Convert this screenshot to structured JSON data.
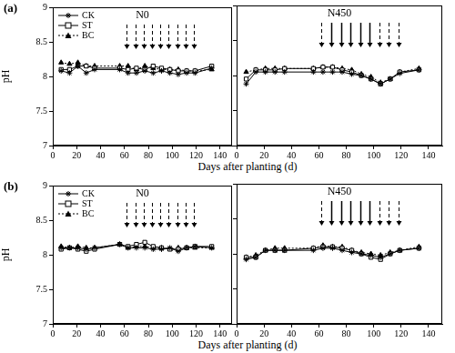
{
  "chart_data": [
    {
      "type": "line",
      "panel_label": "(a)",
      "title": "N0",
      "y_label": "pH",
      "x_label": "Days after planting (d)",
      "xlim": [
        0,
        150
      ],
      "xticks": [
        0,
        20,
        40,
        60,
        80,
        100,
        120,
        140
      ],
      "ylim": [
        7,
        9
      ],
      "yticks": [
        7,
        7.5,
        8,
        8.5,
        9
      ],
      "grid": false,
      "legend": "upper left",
      "x": [
        7,
        14,
        21,
        28,
        35,
        56,
        63,
        70,
        77,
        84,
        91,
        98,
        105,
        112,
        119,
        133
      ],
      "series": [
        {
          "name": "CK",
          "color": "#000000",
          "marker": "star",
          "line_style": "solid",
          "values": [
            8.08,
            8.05,
            8.15,
            8.05,
            8.1,
            8.1,
            8.05,
            8.05,
            8.08,
            8.05,
            8.08,
            8.05,
            8.03,
            8.05,
            8.05,
            8.12
          ]
        },
        {
          "name": "ST",
          "color": "#000000",
          "marker": "square",
          "line_style": "solid",
          "values": [
            8.1,
            8.1,
            8.15,
            8.15,
            8.12,
            8.12,
            8.1,
            8.12,
            8.1,
            8.15,
            8.12,
            8.1,
            8.08,
            8.08,
            8.08,
            8.15
          ]
        },
        {
          "name": "BC",
          "color": "#000000",
          "marker": "triangle",
          "line_style": "dotted",
          "values": [
            8.2,
            8.18,
            8.2,
            8.15,
            8.15,
            8.15,
            8.15,
            8.1,
            8.15,
            8.12,
            8.1,
            8.1,
            8.1,
            8.08,
            8.08,
            8.1
          ]
        }
      ],
      "arrows": [
        {
          "x": 62,
          "line_style": "dashed"
        },
        {
          "x": 69,
          "line_style": "dashed"
        },
        {
          "x": 76,
          "line_style": "dashed"
        },
        {
          "x": 83,
          "line_style": "dashed"
        },
        {
          "x": 90,
          "line_style": "dashed"
        },
        {
          "x": 97,
          "line_style": "dashed"
        },
        {
          "x": 104,
          "line_style": "dashed"
        },
        {
          "x": 111,
          "line_style": "dashed"
        },
        {
          "x": 118,
          "line_style": "dashed"
        }
      ]
    },
    {
      "type": "line",
      "title": "N450",
      "tick_labels": "x",
      "xlim": [
        0,
        150
      ],
      "xticks": [
        0,
        20,
        40,
        60,
        80,
        100,
        120,
        140
      ],
      "ylim": [
        7,
        9
      ],
      "yticks": [
        7,
        7.5,
        8,
        8.5,
        9
      ],
      "grid": false,
      "x": [
        7,
        14,
        21,
        28,
        35,
        56,
        63,
        70,
        77,
        84,
        91,
        98,
        105,
        112,
        119,
        133
      ],
      "series": [
        {
          "name": "CK",
          "color": "#000000",
          "marker": "star",
          "line_style": "solid",
          "values": [
            7.88,
            8.05,
            8.05,
            8.05,
            8.05,
            8.05,
            8.05,
            8.05,
            8.05,
            8.02,
            8.0,
            7.95,
            7.88,
            7.95,
            8.03,
            8.08
          ]
        },
        {
          "name": "ST",
          "color": "#000000",
          "marker": "square",
          "line_style": "solid",
          "values": [
            7.95,
            8.08,
            8.08,
            8.08,
            8.1,
            8.1,
            8.12,
            8.12,
            8.08,
            8.05,
            8.0,
            7.95,
            7.88,
            7.95,
            8.05,
            8.08
          ]
        },
        {
          "name": "BC",
          "color": "#000000",
          "marker": "triangle",
          "line_style": "dotted",
          "values": [
            8.05,
            8.08,
            8.1,
            8.1,
            8.1,
            8.1,
            8.12,
            8.12,
            8.1,
            8.08,
            8.02,
            7.98,
            7.9,
            7.95,
            8.05,
            8.1
          ]
        }
      ],
      "arrows": [
        {
          "x": 62,
          "line_style": "dashed"
        },
        {
          "x": 69,
          "line_style": "solid"
        },
        {
          "x": 76,
          "line_style": "solid"
        },
        {
          "x": 83,
          "line_style": "solid"
        },
        {
          "x": 90,
          "line_style": "solid"
        },
        {
          "x": 97,
          "line_style": "solid"
        },
        {
          "x": 104,
          "line_style": "dashed"
        },
        {
          "x": 111,
          "line_style": "dashed"
        },
        {
          "x": 118,
          "line_style": "dashed"
        }
      ]
    },
    {
      "type": "line",
      "panel_label": "(b)",
      "title": "N0",
      "y_label": "pH",
      "x_label": "Days after planting (d)",
      "xlim": [
        0,
        150
      ],
      "xticks": [
        0,
        20,
        40,
        60,
        80,
        100,
        120,
        140
      ],
      "ylim": [
        7,
        9
      ],
      "yticks": [
        7,
        7.5,
        8,
        8.5,
        9
      ],
      "grid": false,
      "legend": "upper left",
      "x": [
        7,
        14,
        21,
        28,
        35,
        56,
        63,
        70,
        77,
        84,
        91,
        98,
        105,
        112,
        119,
        133
      ],
      "series": [
        {
          "name": "CK",
          "color": "#000000",
          "marker": "star",
          "line_style": "solid",
          "values": [
            8.1,
            8.1,
            8.1,
            8.08,
            8.1,
            8.15,
            8.1,
            8.1,
            8.1,
            8.08,
            8.08,
            8.1,
            8.05,
            8.1,
            8.12,
            8.1
          ]
        },
        {
          "name": "ST",
          "color": "#000000",
          "marker": "square",
          "line_style": "solid",
          "values": [
            8.08,
            8.1,
            8.08,
            8.05,
            8.08,
            8.15,
            8.12,
            8.15,
            8.18,
            8.12,
            8.1,
            8.08,
            8.08,
            8.1,
            8.12,
            8.12
          ]
        },
        {
          "name": "BC",
          "color": "#000000",
          "marker": "triangle",
          "line_style": "dotted",
          "values": [
            8.12,
            8.1,
            8.12,
            8.1,
            8.1,
            8.15,
            8.1,
            8.12,
            8.12,
            8.1,
            8.1,
            8.08,
            8.1,
            8.1,
            8.1,
            8.1
          ]
        }
      ],
      "arrows": [
        {
          "x": 62,
          "line_style": "dashed"
        },
        {
          "x": 69,
          "line_style": "dashed"
        },
        {
          "x": 76,
          "line_style": "dashed"
        },
        {
          "x": 83,
          "line_style": "dashed"
        },
        {
          "x": 90,
          "line_style": "dashed"
        },
        {
          "x": 97,
          "line_style": "dashed"
        },
        {
          "x": 104,
          "line_style": "dashed"
        },
        {
          "x": 111,
          "line_style": "dashed"
        },
        {
          "x": 118,
          "line_style": "dashed"
        }
      ]
    },
    {
      "type": "line",
      "title": "N450",
      "tick_labels": "x",
      "xlim": [
        0,
        150
      ],
      "xticks": [
        0,
        20,
        40,
        60,
        80,
        100,
        120,
        140
      ],
      "ylim": [
        7,
        9
      ],
      "yticks": [
        7,
        7.5,
        8,
        8.5,
        9
      ],
      "grid": false,
      "x": [
        7,
        14,
        21,
        28,
        35,
        56,
        63,
        70,
        77,
        84,
        91,
        98,
        105,
        112,
        119,
        133
      ],
      "series": [
        {
          "name": "CK",
          "color": "#000000",
          "marker": "star",
          "line_style": "solid",
          "values": [
            7.92,
            7.95,
            8.05,
            8.05,
            8.05,
            8.05,
            8.08,
            8.08,
            8.05,
            8.02,
            8.0,
            7.98,
            7.95,
            8.0,
            8.05,
            8.08
          ]
        },
        {
          "name": "ST",
          "color": "#000000",
          "marker": "square",
          "line_style": "solid",
          "values": [
            7.95,
            7.95,
            8.05,
            8.05,
            8.05,
            8.08,
            8.1,
            8.1,
            8.08,
            8.05,
            8.0,
            7.95,
            7.92,
            8.0,
            8.05,
            8.08
          ]
        },
        {
          "name": "BC",
          "color": "#000000",
          "marker": "triangle",
          "line_style": "dotted",
          "values": [
            7.95,
            7.98,
            8.05,
            8.08,
            8.08,
            8.08,
            8.12,
            8.1,
            8.1,
            8.05,
            8.02,
            8.0,
            7.98,
            8.02,
            8.05,
            8.1
          ]
        }
      ],
      "arrows": [
        {
          "x": 62,
          "line_style": "dashed"
        },
        {
          "x": 69,
          "line_style": "solid"
        },
        {
          "x": 76,
          "line_style": "solid"
        },
        {
          "x": 83,
          "line_style": "solid"
        },
        {
          "x": 90,
          "line_style": "solid"
        },
        {
          "x": 97,
          "line_style": "solid"
        },
        {
          "x": 104,
          "line_style": "dashed"
        },
        {
          "x": 111,
          "line_style": "dashed"
        },
        {
          "x": 118,
          "line_style": "dashed"
        }
      ]
    }
  ]
}
